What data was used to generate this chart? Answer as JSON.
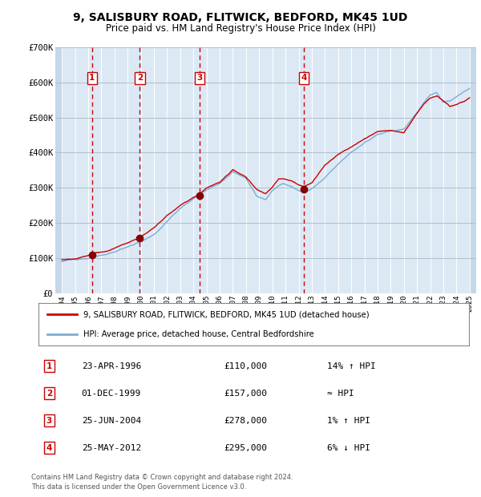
{
  "title": "9, SALISBURY ROAD, FLITWICK, BEDFORD, MK45 1UD",
  "subtitle": "Price paid vs. HM Land Registry's House Price Index (HPI)",
  "legend_line1": "9, SALISBURY ROAD, FLITWICK, BEDFORD, MK45 1UD (detached house)",
  "legend_line2": "HPI: Average price, detached house, Central Bedfordshire",
  "footnote1": "Contains HM Land Registry data © Crown copyright and database right 2024.",
  "footnote2": "This data is licensed under the Open Government Licence v3.0.",
  "transactions": [
    {
      "num": 1,
      "date": "23-APR-1996",
      "price": 110000,
      "note": "14% ↑ HPI",
      "year": 1996.3
    },
    {
      "num": 2,
      "date": "01-DEC-1999",
      "price": 157000,
      "note": "≈ HPI",
      "year": 1999.92
    },
    {
      "num": 3,
      "date": "25-JUN-2004",
      "price": 278000,
      "note": "1% ↑ HPI",
      "year": 2004.48
    },
    {
      "num": 4,
      "date": "25-MAY-2012",
      "price": 295000,
      "note": "6% ↓ HPI",
      "year": 2012.4
    }
  ],
  "hpi_color": "#7dadd4",
  "price_color": "#cc0000",
  "dot_color": "#880000",
  "vline_color": "#cc0000",
  "background_color": "#dce9f5",
  "hatch_color": "#c5d8ea",
  "grid_color": "#b0bfcc",
  "white_vline_color": "#ffffff",
  "ylim": [
    0,
    700000
  ],
  "xlim_start": 1993.5,
  "xlim_end": 2025.5,
  "yticks": [
    0,
    100000,
    200000,
    300000,
    400000,
    500000,
    600000,
    700000
  ],
  "ytick_labels": [
    "£0",
    "£100K",
    "£200K",
    "£300K",
    "£400K",
    "£500K",
    "£600K",
    "£700K"
  ]
}
